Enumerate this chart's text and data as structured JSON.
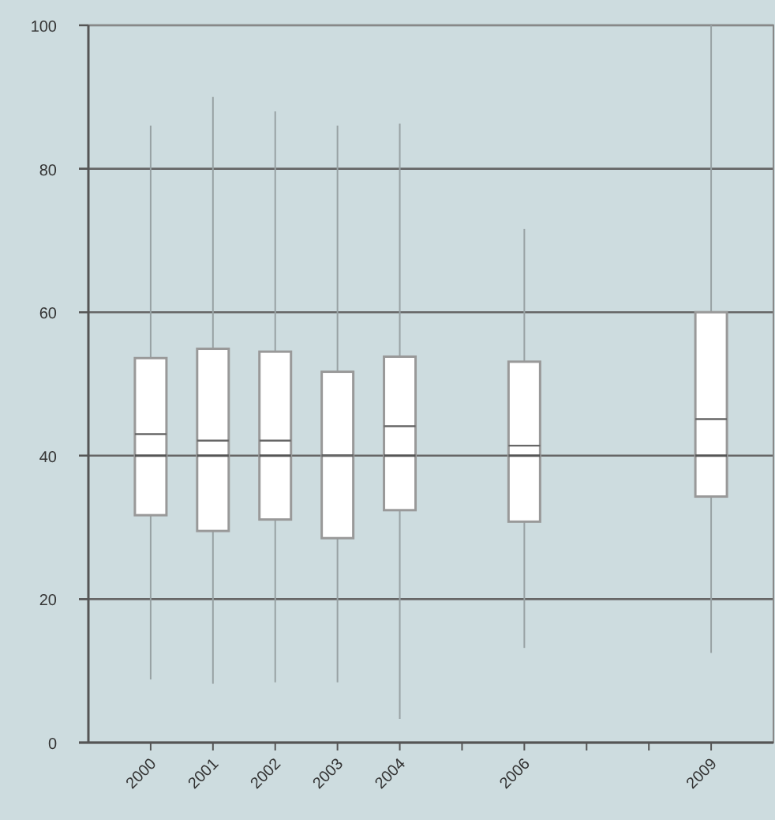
{
  "chart_data": {
    "type": "box",
    "x": [
      2000,
      2001,
      2002,
      2003,
      2004,
      2006,
      2009
    ],
    "boxes": [
      {
        "low": 8.8,
        "q1": 31.7,
        "median": 40,
        "q3": 53.6,
        "high": 86,
        "mean": 43
      },
      {
        "low": 8.2,
        "q1": 29.5,
        "median": 40,
        "q3": 54.9,
        "high": 90,
        "mean": 42.1
      },
      {
        "low": 8.4,
        "q1": 31.1,
        "median": 40,
        "q3": 54.5,
        "high": 88,
        "mean": 42.1
      },
      {
        "low": 8.4,
        "q1": 28.5,
        "median": 40,
        "q3": 51.7,
        "high": 86,
        "mean": 40
      },
      {
        "low": 3.3,
        "q1": 32.4,
        "median": 40,
        "q3": 53.8,
        "high": 86.3,
        "mean": 44.1
      },
      {
        "low": 13.2,
        "q1": 30.8,
        "median": 40,
        "q3": 53.1,
        "high": 71.6,
        "mean": 41.4
      },
      {
        "low": 12.5,
        "q1": 34.3,
        "median": 40,
        "q3": 60,
        "high": 100,
        "mean": 45.1
      }
    ],
    "color": "#ffffff",
    "xlim": [
      1999,
      2010
    ],
    "xticks": [
      2000,
      2001,
      2002,
      2003,
      2004,
      {
        "value": 2005,
        "label": null
      },
      2006,
      {
        "value": 2007,
        "label": null
      },
      {
        "value": 2008,
        "label": null
      },
      2009
    ],
    "ylim": [
      0,
      100
    ],
    "yticks": [
      0,
      20,
      40,
      60,
      80,
      100
    ],
    "grid": "y"
  }
}
